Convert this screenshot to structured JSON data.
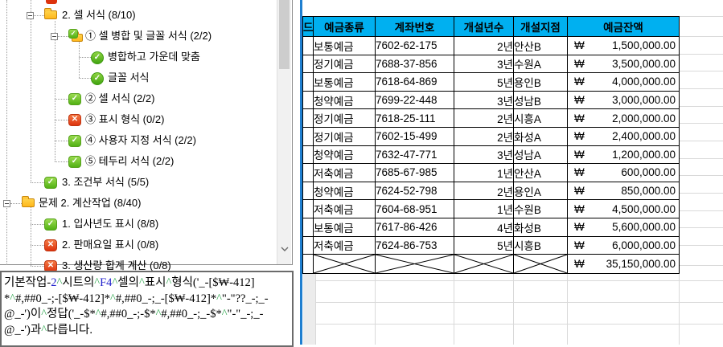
{
  "glyphs": {
    "check": "✓",
    "cross": "✕"
  },
  "colors": {
    "header_bg": "#00b0f0",
    "pane_boundary_blue": "#1f7fd0",
    "check_green": "#52b114",
    "cross_red": "#dd330e",
    "caret_green": "#2fa84f",
    "ref_blue": "#2222cc",
    "gridline": "#d9d9d9"
  },
  "tree": {
    "items": [
      {
        "label": "2. 셀 서식 (8/10)",
        "icon": "folder",
        "level": 1,
        "expander": "minus"
      },
      {
        "label": "① 셀 병합 및 글꼴 서식 (2/2)",
        "icon": "folder-check",
        "level": 2,
        "expander": "minus"
      },
      {
        "label": "병합하고 가운데 맞춤",
        "icon": "check-circle",
        "level": 3
      },
      {
        "label": "글꼴 서식",
        "icon": "check-circle",
        "level": 3
      },
      {
        "label": "② 셀 서식 (2/2)",
        "icon": "check-square",
        "level": 2
      },
      {
        "label": "③ 표시 형식 (0/2)",
        "icon": "cross-square",
        "level": 2
      },
      {
        "label": "④ 사용자 지정 서식 (2/2)",
        "icon": "check-square",
        "level": 2
      },
      {
        "label": "⑤ 테두리 서식 (2/2)",
        "icon": "check-square",
        "level": 2
      },
      {
        "label": "3. 조건부 서식 (5/5)",
        "icon": "check-square",
        "level": 1
      },
      {
        "label": "문제 2. 계산작업 (8/40)",
        "icon": "folder",
        "level": 0,
        "expander": "minus"
      },
      {
        "label": "1. 입사년도 표시 (8/8)",
        "icon": "check-square",
        "level": 1
      },
      {
        "label": "2. 판매요일 표시 (0/8)",
        "icon": "cross-square",
        "level": 1
      },
      {
        "label": "3. 생산량 합계 계산 (0/8)",
        "icon": "cross-square",
        "level": 1
      }
    ]
  },
  "table": {
    "partial_header": "드",
    "columns": [
      "예금종류",
      "계좌번호",
      "개설년수",
      "개설지점",
      "예금잔액"
    ],
    "currency": "₩",
    "rows": [
      {
        "type": "보통예금",
        "account": "7602-62-175",
        "years": "2년",
        "branch": "안산B",
        "amount": "1,500,000.00"
      },
      {
        "type": "정기예금",
        "account": "7688-37-856",
        "years": "3년",
        "branch": "수원A",
        "amount": "3,500,000.00"
      },
      {
        "type": "보통예금",
        "account": "7618-64-869",
        "years": "5년",
        "branch": "용인B",
        "amount": "4,000,000.00"
      },
      {
        "type": "청약예금",
        "account": "7699-22-448",
        "years": "3년",
        "branch": "성남B",
        "amount": "3,000,000.00"
      },
      {
        "type": "정기예금",
        "account": "7618-25-111",
        "years": "2년",
        "branch": "시흥A",
        "amount": "2,000,000.00"
      },
      {
        "type": "정기예금",
        "account": "7602-15-499",
        "years": "2년",
        "branch": "화성A",
        "amount": "2,400,000.00"
      },
      {
        "type": "청약예금",
        "account": "7632-47-771",
        "years": "3년",
        "branch": "성남A",
        "amount": "1,200,000.00"
      },
      {
        "type": "저축예금",
        "account": "7685-67-985",
        "years": "1년",
        "branch": "안산A",
        "amount": "600,000.00"
      },
      {
        "type": "청약예금",
        "account": "7624-52-798",
        "years": "2년",
        "branch": "용인A",
        "amount": "850,000.00"
      },
      {
        "type": "저축예금",
        "account": "7604-68-951",
        "years": "1년",
        "branch": "수원B",
        "amount": "4,500,000.00"
      },
      {
        "type": "보통예금",
        "account": "7617-86-426",
        "years": "4년",
        "branch": "화성B",
        "amount": "5,600,000.00"
      },
      {
        "type": "저축예금",
        "account": "7624-86-753",
        "years": "5년",
        "branch": "시흥B",
        "amount": "6,000,000.00"
      }
    ],
    "total_amount": "35,150,000.00"
  },
  "message": {
    "lines": [
      [
        {
          "t": "기본작업-"
        },
        {
          "t": "2",
          "c": "blue"
        },
        {
          "t": "^",
          "c": "green"
        },
        {
          "t": "시트의"
        },
        {
          "t": "^",
          "c": "green"
        },
        {
          "t": "F4",
          "c": "blue"
        },
        {
          "t": "^",
          "c": "green"
        },
        {
          "t": "셀의"
        },
        {
          "t": "^",
          "c": "green"
        },
        {
          "t": "표시"
        },
        {
          "t": "^",
          "c": "green"
        },
        {
          "t": "형식('_-[$₩-412]"
        }
      ],
      [
        {
          "t": "*"
        },
        {
          "t": "^",
          "c": "green"
        },
        {
          "t": "#,##0_-;-[$₩-412]*"
        },
        {
          "t": "^",
          "c": "green"
        },
        {
          "t": "#,##0_-;_-[$₩-412]*"
        },
        {
          "t": "^",
          "c": "green"
        },
        {
          "t": "\"-\"??_-;_-"
        }
      ],
      [
        {
          "t": "@_-')이"
        },
        {
          "t": "^",
          "c": "green"
        },
        {
          "t": "정답('_-$*"
        },
        {
          "t": "^",
          "c": "green"
        },
        {
          "t": "#,##0_-;-$*"
        },
        {
          "t": "^",
          "c": "green"
        },
        {
          "t": "#,##0_-;_-$*"
        },
        {
          "t": "^",
          "c": "green"
        },
        {
          "t": "\"-\"_-;_-"
        }
      ],
      [
        {
          "t": "@_-')과"
        },
        {
          "t": "^",
          "c": "green"
        },
        {
          "t": "다릅니다."
        }
      ]
    ]
  }
}
